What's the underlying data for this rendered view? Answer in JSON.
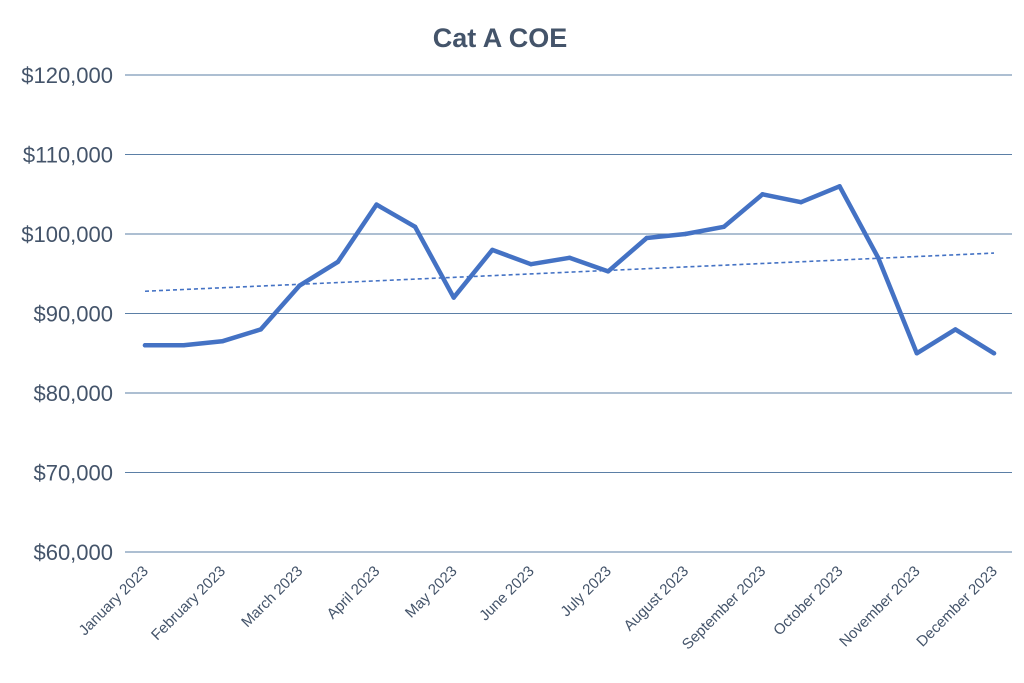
{
  "chart_data": {
    "type": "line",
    "title": "Cat A COE",
    "xlabel": "",
    "ylabel": "",
    "ylim": [
      60000,
      120000
    ],
    "yticks": [
      60000,
      70000,
      80000,
      90000,
      100000,
      110000,
      120000
    ],
    "ytick_labels": [
      "$60,000",
      "$70,000",
      "$80,000",
      "$90,000",
      "$100,000",
      "$110,000",
      "$120,000"
    ],
    "categories": [
      "January 2023",
      "February 2023",
      "March 2023",
      "April 2023",
      "May 2023",
      "June 2023",
      "July 2023",
      "August 2023",
      "September 2023",
      "October 2023",
      "November 2023",
      "December 2023"
    ],
    "grid": true,
    "legend": "none",
    "colors": {
      "series": "#4472c4",
      "grid": "#5b7fa6",
      "text": "#44546a"
    },
    "series": [
      {
        "x": [
          1,
          1.5,
          2,
          2.5,
          3,
          3.5,
          4,
          4.5,
          5,
          5.5,
          6,
          6.5,
          7,
          7.5,
          8,
          8.5,
          9,
          9.5,
          10,
          10.5,
          11,
          11.5,
          12
        ],
        "values": [
          86000,
          86000,
          86500,
          88000,
          93500,
          96500,
          103700,
          100900,
          92000,
          98000,
          96200,
          97000,
          95300,
          99500,
          100000,
          100900,
          105000,
          104000,
          106000,
          97000,
          85000,
          88000,
          85000
        ]
      }
    ],
    "trendline": {
      "style": "dashed",
      "start": 92800,
      "end": 97600
    }
  }
}
